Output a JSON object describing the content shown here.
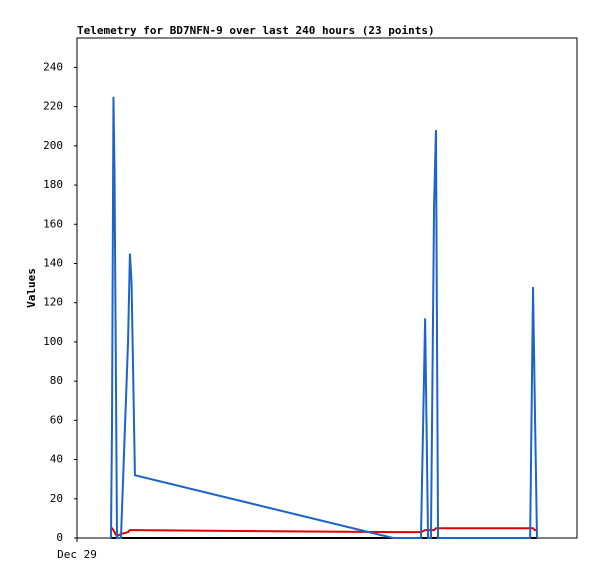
{
  "chart_data": {
    "type": "line",
    "title": "Telemetry for BD7NFN-9 over last 240 hours (23 points)",
    "y_label": "Values",
    "x": [
      16.3,
      16.8,
      17.5,
      18.0,
      18.5,
      19.2,
      21.1,
      24.5,
      25.4,
      26.2,
      27.8,
      151.7,
      165.1,
      167.1,
      168.5,
      169.9,
      171.4,
      172.3,
      173.3,
      217.5,
      218.9,
      219.8,
      220.8
    ],
    "series": [
      {
        "color": "#000000",
        "values": [
          0,
          0,
          0,
          0,
          0,
          0,
          0,
          0,
          0,
          0,
          0,
          0,
          0,
          0,
          0,
          0,
          0,
          0,
          0,
          0,
          0,
          0,
          0
        ]
      },
      {
        "color": "#e00000",
        "values": [
          5,
          5,
          4,
          3,
          2,
          1,
          2,
          3,
          4,
          4,
          4,
          3,
          3,
          4,
          4,
          4,
          4,
          5,
          5,
          5,
          5,
          4,
          4
        ]
      },
      {
        "color": "#1c64c8",
        "values": [
          0,
          57,
          225,
          187,
          112,
          0,
          0,
          100,
          145,
          130,
          32,
          0,
          0,
          112,
          0,
          0,
          170,
          208,
          0,
          0,
          128,
          65,
          0
        ]
      }
    ],
    "xlim": [
      0,
      240
    ],
    "xticks": [
      {
        "value": 0,
        "label": "Dec 29"
      }
    ],
    "ylim": [
      0,
      255
    ],
    "yticks": [
      0,
      20,
      40,
      60,
      80,
      100,
      120,
      140,
      160,
      180,
      200,
      220,
      240
    ],
    "grid": false
  }
}
